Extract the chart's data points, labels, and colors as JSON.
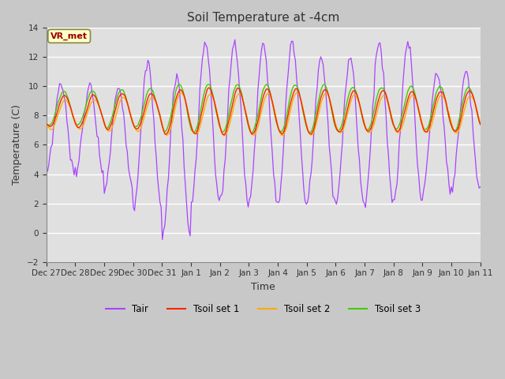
{
  "title": "Soil Temperature at -4cm",
  "xlabel": "Time",
  "ylabel": "Temperature (C)",
  "ylim": [
    -2,
    14
  ],
  "yticks": [
    -2,
    0,
    2,
    4,
    6,
    8,
    10,
    12,
    14
  ],
  "annotation_text": "VR_met",
  "fig_bg_color": "#c8c8c8",
  "plot_bg_color": "#e0e0e0",
  "colors": {
    "Tair": "#aa44ff",
    "Tsoil1": "#ff2200",
    "Tsoil2": "#ffaa00",
    "Tsoil3": "#44cc00"
  },
  "legend_labels": [
    "Tair",
    "Tsoil set 1",
    "Tsoil set 2",
    "Tsoil set 3"
  ],
  "tick_labels": [
    "Dec 27",
    "Dec 28",
    "Dec 29",
    "Dec 30",
    "Dec 31",
    "Jan 1",
    "Jan 2",
    "Jan 3",
    "Jan 4",
    "Jan 5",
    "Jan 6",
    "Jan 7",
    "Jan 8",
    "Jan 9",
    "Jan 10",
    "Jan 11"
  ],
  "figsize": [
    6.4,
    4.8
  ],
  "dpi": 100
}
